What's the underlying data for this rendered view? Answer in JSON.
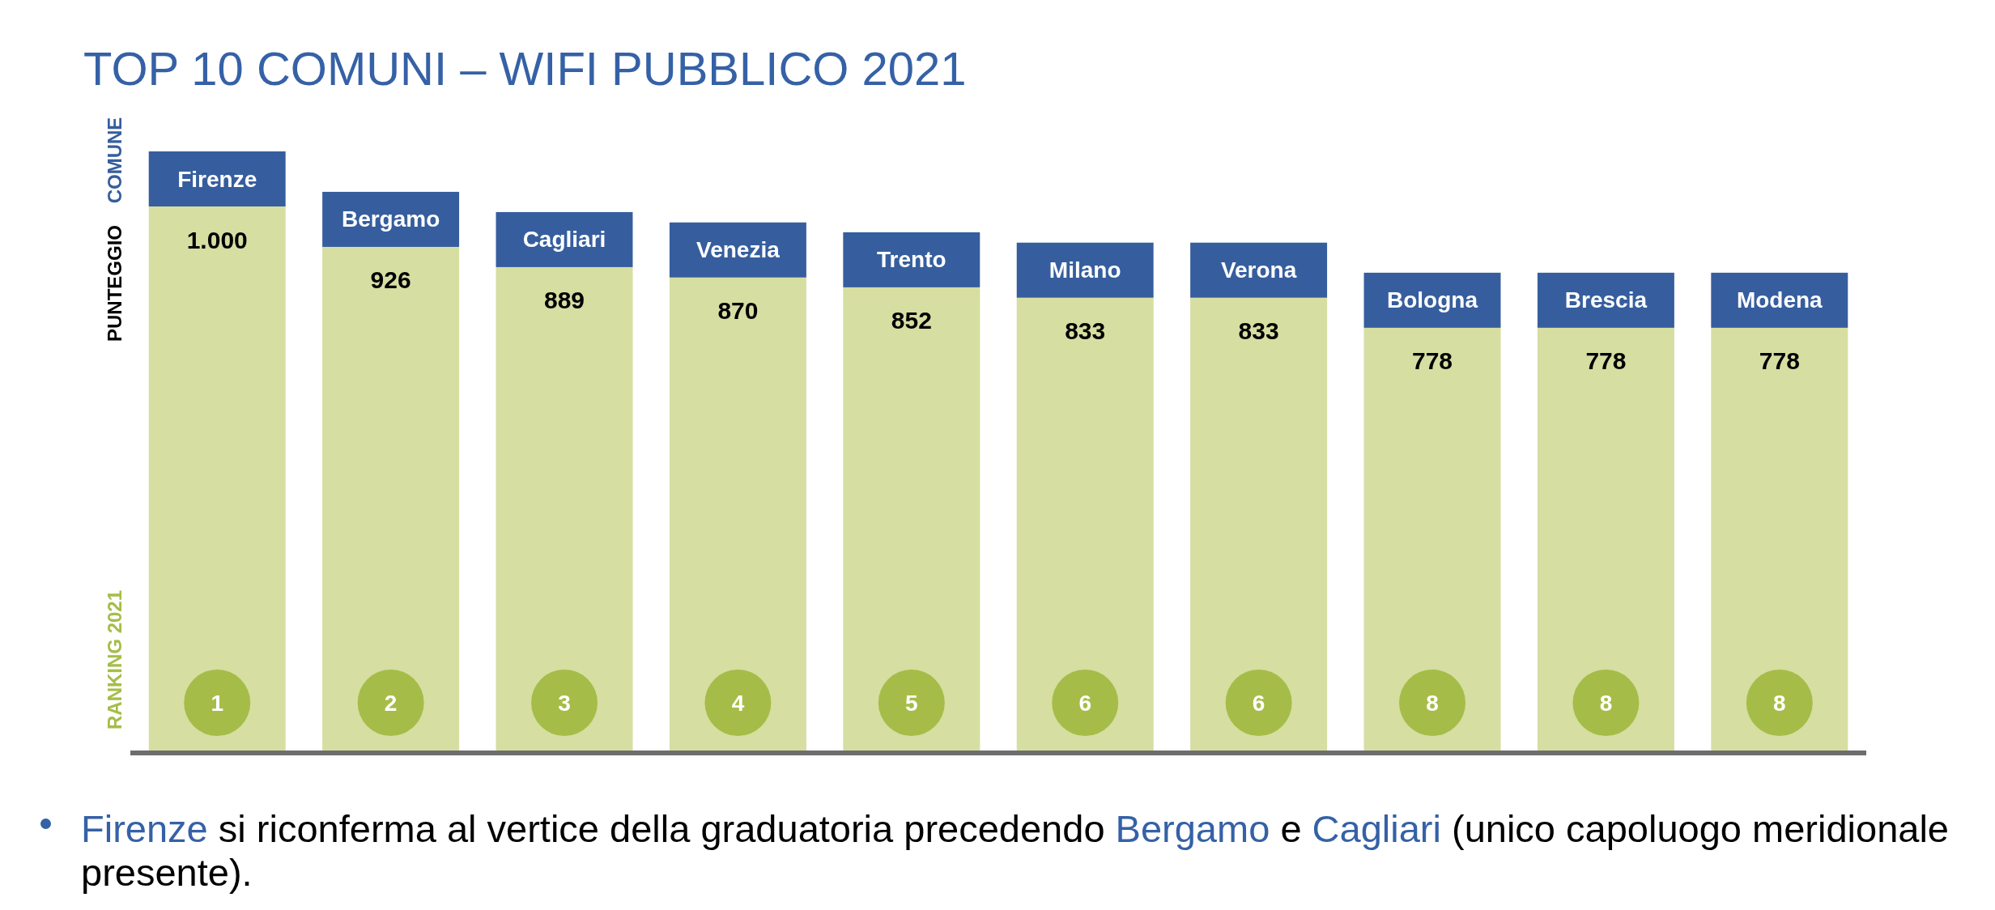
{
  "chart_data": {
    "type": "bar",
    "title": "TOP 10 COMUNI – WIFI PUBBLICO 2021",
    "ylabel": "PUNTEGGIO",
    "categories": [
      "Firenze",
      "Bergamo",
      "Cagliari",
      "Venezia",
      "Trento",
      "Milano",
      "Verona",
      "Bologna",
      "Brescia",
      "Modena"
    ],
    "values": [
      1000,
      926,
      889,
      870,
      852,
      833,
      833,
      778,
      778,
      778
    ],
    "value_labels": [
      "1.000",
      "926",
      "889",
      "870",
      "852",
      "833",
      "833",
      "778",
      "778",
      "778"
    ],
    "color": "#d6dea2",
    "ylim": [
      0,
      1000
    ],
    "annotations": [
      "COMUNE",
      "RANKING 2021",
      "1",
      "2",
      "3",
      "4",
      "5",
      "6",
      "6",
      "8",
      "8",
      "8",
      "Firenze si riconferma al vertice della graduatoria precedendo Bergamo e Cagliari (unico capoluogo meridionale presente)."
    ]
  }
}
